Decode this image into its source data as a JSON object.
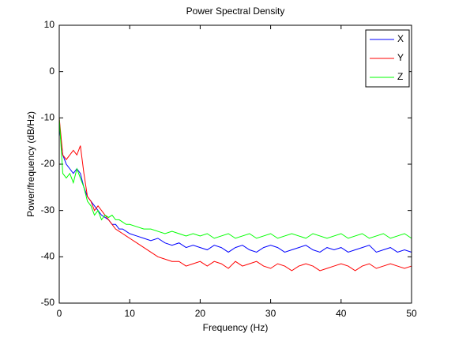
{
  "chart_data": {
    "type": "line",
    "title": "Power Spectral Density",
    "xlabel": "Frequency (Hz)",
    "ylabel": "Power/frequency (dB/Hz)",
    "x": [
      0,
      0.5,
      1,
      1.5,
      2,
      2.5,
      3,
      3.5,
      4,
      4.5,
      5,
      5.5,
      6,
      6.5,
      7,
      7.5,
      8,
      8.5,
      9,
      9.5,
      10,
      11,
      12,
      13,
      14,
      15,
      16,
      17,
      18,
      19,
      20,
      21,
      22,
      23,
      24,
      25,
      26,
      27,
      28,
      29,
      30,
      31,
      32,
      33,
      34,
      35,
      36,
      37,
      38,
      39,
      40,
      41,
      42,
      43,
      44,
      45,
      46,
      47,
      48,
      49,
      50
    ],
    "series": [
      {
        "name": "X",
        "color": "#0000ff",
        "values": [
          -12,
          -18,
          -20,
          -21,
          -22,
          -21,
          -22,
          -25,
          -27,
          -28,
          -29,
          -30,
          -31,
          -31.5,
          -32,
          -33,
          -33,
          -34,
          -34,
          -34.5,
          -35,
          -35.5,
          -36,
          -36.5,
          -36,
          -37,
          -37.5,
          -37,
          -38,
          -37.5,
          -38,
          -38.5,
          -37.5,
          -38,
          -39,
          -38,
          -37.5,
          -38.5,
          -39,
          -38,
          -37.5,
          -38,
          -39,
          -38.5,
          -38,
          -37.5,
          -38.5,
          -39,
          -38,
          -38.5,
          -38,
          -39,
          -38.5,
          -38,
          -37.5,
          -39,
          -38.5,
          -38,
          -39,
          -38.5,
          -39
        ]
      },
      {
        "name": "Y",
        "color": "#ff0000",
        "values": [
          -10,
          -18,
          -19,
          -18,
          -17,
          -18,
          -16,
          -22,
          -27,
          -28,
          -30,
          -29,
          -30,
          -31,
          -32,
          -33,
          -34,
          -34.5,
          -35,
          -35.5,
          -36,
          -37,
          -38,
          -39,
          -40,
          -40.5,
          -41,
          -41,
          -42,
          -41.5,
          -41,
          -42,
          -41,
          -41.5,
          -42.5,
          -41,
          -42,
          -41.5,
          -41,
          -42,
          -42.5,
          -41.5,
          -42,
          -43,
          -42,
          -41.5,
          -42,
          -43,
          -42.5,
          -42,
          -41.5,
          -42,
          -43,
          -42,
          -41.5,
          -42.5,
          -42,
          -41.5,
          -42,
          -42.5,
          -42
        ]
      },
      {
        "name": "Z",
        "color": "#00ff00",
        "values": [
          -10,
          -22,
          -23,
          -22,
          -24,
          -21,
          -23,
          -25,
          -28,
          -29,
          -31,
          -30,
          -32,
          -31,
          -31.5,
          -31,
          -32,
          -32,
          -32.5,
          -33,
          -33,
          -33.5,
          -34,
          -34,
          -34.5,
          -35,
          -34.5,
          -35,
          -35.5,
          -35,
          -35.5,
          -35,
          -36,
          -35.5,
          -35,
          -36,
          -35.5,
          -35,
          -36,
          -35.5,
          -35,
          -36,
          -35.5,
          -35,
          -35.5,
          -36,
          -35,
          -35.5,
          -36,
          -35.5,
          -35,
          -36,
          -35.5,
          -35,
          -36,
          -35.5,
          -35,
          -36,
          -35.5,
          -35,
          -36
        ]
      }
    ],
    "xlim": [
      0,
      50
    ],
    "xticks": [
      0,
      10,
      20,
      30,
      40,
      50
    ],
    "ylim": [
      -50,
      10
    ],
    "yticks": [
      10,
      0,
      -10,
      -20,
      -30,
      -40,
      -50
    ],
    "grid": false,
    "legend": "northeast"
  }
}
